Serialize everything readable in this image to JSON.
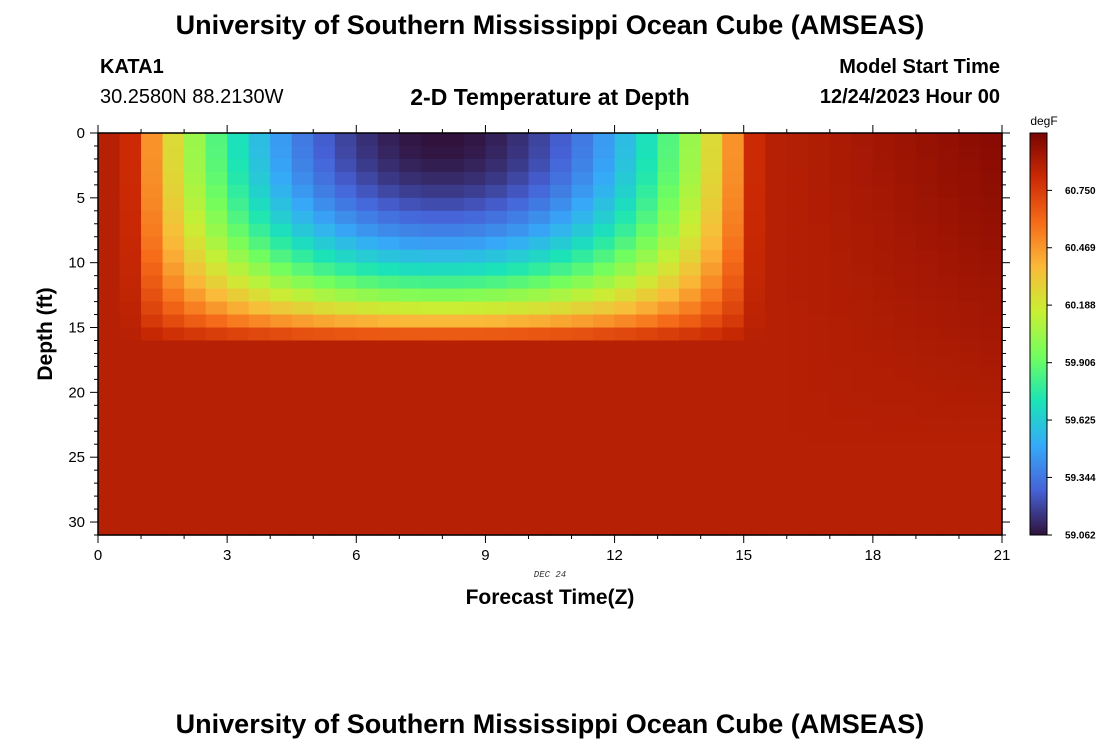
{
  "header": {
    "title": "University of Southern Mississippi Ocean Cube (AMSEAS)",
    "station": "KATA1",
    "coords": "30.2580N  88.2130W",
    "subtitle": "2-D Temperature at Depth",
    "model_start_label": "Model Start Time",
    "model_start_date": "12/24/2023 Hour 00"
  },
  "footer": {
    "title": "University of Southern Mississippi Ocean Cube (AMSEAS)"
  },
  "chart_data": {
    "type": "heatmap",
    "title": "2-D Temperature at Depth",
    "xlabel": "Forecast Time(Z)",
    "ylabel": "Depth (ft)",
    "x_date_label": "DEC 24",
    "xlim": [
      0,
      21
    ],
    "ylim": [
      0,
      31
    ],
    "x_ticks": [
      0,
      3,
      6,
      9,
      12,
      15,
      18,
      21
    ],
    "y_ticks": [
      0,
      5,
      10,
      15,
      20,
      25,
      30
    ],
    "colorbar": {
      "unit": "degF",
      "ticks": [
        "60.750",
        "60.469",
        "60.188",
        "59.906",
        "59.625",
        "59.344",
        "59.062"
      ],
      "tick_values": [
        60.75,
        60.469,
        60.188,
        59.906,
        59.625,
        59.344,
        59.062
      ],
      "range": [
        59.062,
        61.031
      ],
      "colormap": [
        "#30123b",
        "#4662d7",
        "#36aaf9",
        "#1ae4b6",
        "#72fe5e",
        "#c8ef34",
        "#faba39",
        "#f66b19",
        "#cb2a04",
        "#7a0403"
      ]
    },
    "field_model": {
      "description": "Temperature (degF) vs forecast hour (x) and depth ft (y): cold surface pool centered near hour 8, warm water at depth and late in the period",
      "base_temp": 60.87,
      "cold_pool_center_hour": 8.0,
      "cold_pool_min_temp": 59.06,
      "cold_pool_half_width_hours": 7.3,
      "cold_pool_depth_ft": 16.0,
      "late_surface_warmest_temp": 61.0
    }
  }
}
